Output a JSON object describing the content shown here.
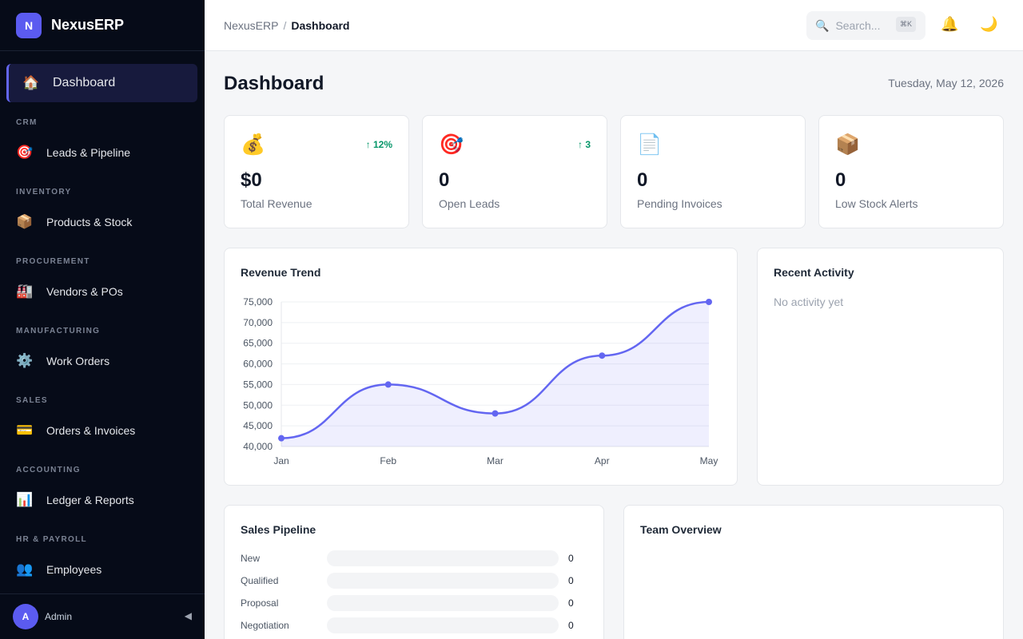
{
  "brand": {
    "logo_letter": "N",
    "name": "NexusERP"
  },
  "sidebar": {
    "active": {
      "label": "Dashboard",
      "icon": "home-icon"
    },
    "sections": [
      {
        "title": "CRM",
        "item": "Leads & Pipeline",
        "icon": "target-icon"
      },
      {
        "title": "INVENTORY",
        "item": "Products & Stock",
        "icon": "package-icon"
      },
      {
        "title": "PROCUREMENT",
        "item": "Vendors & POs",
        "icon": "factory-icon"
      },
      {
        "title": "MANUFACTURING",
        "item": "Work Orders",
        "icon": "gear-icon"
      },
      {
        "title": "SALES",
        "item": "Orders & Invoices",
        "icon": "credit-card-icon"
      },
      {
        "title": "ACCOUNTING",
        "item": "Ledger & Reports",
        "icon": "bar-chart-icon"
      },
      {
        "title": "HR & PAYROLL",
        "item": "Employees",
        "icon": "people-icon"
      }
    ],
    "user": {
      "initial": "A",
      "name": "Admin"
    },
    "collapse_glyph": "◀"
  },
  "header": {
    "breadcrumb": {
      "root": "NexusERP",
      "separator": "/",
      "current": "Dashboard"
    },
    "search": {
      "placeholder": "Search...",
      "shortcut": "⌘K"
    }
  },
  "page": {
    "title": "Dashboard",
    "date": "Tuesday, May 12, 2026"
  },
  "stats": [
    {
      "icon": "money-bag-icon",
      "badge": "↑ 12%",
      "value": "$0",
      "label": "Total Revenue"
    },
    {
      "icon": "target-icon",
      "badge": "↑ 3",
      "value": "0",
      "label": "Open Leads"
    },
    {
      "icon": "document-icon",
      "badge": "",
      "value": "0",
      "label": "Pending Invoices"
    },
    {
      "icon": "package-icon",
      "badge": "",
      "value": "0",
      "label": "Low Stock Alerts"
    }
  ],
  "revenue": {
    "title": "Revenue Trend"
  },
  "chart_data": {
    "type": "line",
    "categories": [
      "Jan",
      "Feb",
      "Mar",
      "Apr",
      "May"
    ],
    "values": [
      42000,
      55000,
      48000,
      62000,
      75000
    ],
    "ylim": [
      40000,
      75000
    ],
    "yticks": [
      "40,000",
      "45,000",
      "50,000",
      "55,000",
      "60,000",
      "65,000",
      "70,000",
      "75,000"
    ],
    "ytick_values": [
      40000,
      45000,
      50000,
      55000,
      60000,
      65000,
      70000,
      75000
    ],
    "smooth": true,
    "fill": true,
    "grid": true,
    "color": "#6366f1"
  },
  "activity": {
    "title": "Recent Activity",
    "empty": "No activity yet"
  },
  "pipeline": {
    "title": "Sales Pipeline",
    "stages": [
      {
        "label": "New",
        "count": "0",
        "fraction": 0
      },
      {
        "label": "Qualified",
        "count": "0",
        "fraction": 0
      },
      {
        "label": "Proposal",
        "count": "0",
        "fraction": 0
      },
      {
        "label": "Negotiation",
        "count": "0",
        "fraction": 0
      }
    ]
  },
  "team": {
    "title": "Team Overview"
  },
  "colors": {
    "accent": "#6366f1",
    "sidebar_bg": "#060b18",
    "success": "#059669"
  }
}
